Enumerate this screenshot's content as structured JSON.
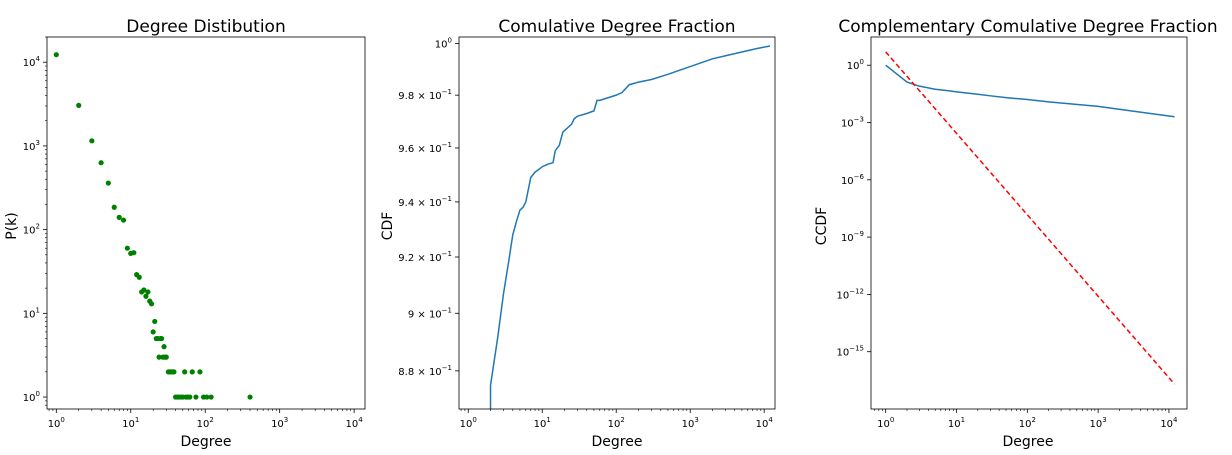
{
  "chart_data": [
    {
      "type": "scatter",
      "title": "Degree Distibution",
      "xlabel": "Degree",
      "ylabel": "P(k)",
      "xscale": "log",
      "yscale": "log",
      "xlim": [
        0.75,
        14000
      ],
      "ylim": [
        0.72,
        20000
      ],
      "grid": false,
      "colors": {
        "points": "#008000"
      },
      "xticks": [
        {
          "base": "10",
          "exp": "0"
        },
        {
          "base": "10",
          "exp": "1"
        },
        {
          "base": "10",
          "exp": "2"
        },
        {
          "base": "10",
          "exp": "3"
        },
        {
          "base": "10",
          "exp": "4"
        }
      ],
      "yticks": [
        {
          "base": "10",
          "exp": "0"
        },
        {
          "base": "10",
          "exp": "1"
        },
        {
          "base": "10",
          "exp": "2"
        },
        {
          "base": "10",
          "exp": "3"
        },
        {
          "base": "10",
          "exp": "4"
        }
      ],
      "points": [
        [
          1,
          12300
        ],
        [
          2,
          3050
        ],
        [
          3,
          1150
        ],
        [
          4,
          630
        ],
        [
          5,
          360
        ],
        [
          6,
          185
        ],
        [
          7,
          140
        ],
        [
          8,
          130
        ],
        [
          9,
          60
        ],
        [
          10,
          52
        ],
        [
          11,
          53
        ],
        [
          12,
          29
        ],
        [
          13,
          27
        ],
        [
          14,
          18
        ],
        [
          15,
          19
        ],
        [
          16,
          16
        ],
        [
          17,
          18
        ],
        [
          18,
          14
        ],
        [
          19,
          13
        ],
        [
          20,
          6
        ],
        [
          21,
          8
        ],
        [
          22,
          5
        ],
        [
          23,
          5
        ],
        [
          24,
          3
        ],
        [
          25,
          5
        ],
        [
          26,
          5
        ],
        [
          27,
          3
        ],
        [
          28,
          4
        ],
        [
          29,
          3
        ],
        [
          30,
          3
        ],
        [
          32,
          2
        ],
        [
          34,
          2
        ],
        [
          36,
          2
        ],
        [
          38,
          2
        ],
        [
          40,
          1
        ],
        [
          42,
          1
        ],
        [
          44,
          1
        ],
        [
          47,
          1
        ],
        [
          50,
          1
        ],
        [
          53,
          2
        ],
        [
          55,
          1
        ],
        [
          58,
          1
        ],
        [
          62,
          1
        ],
        [
          67,
          2
        ],
        [
          75,
          1
        ],
        [
          85,
          2
        ],
        [
          95,
          1
        ],
        [
          105,
          1
        ],
        [
          120,
          1
        ],
        [
          400,
          1
        ]
      ]
    },
    {
      "type": "line",
      "title": "Comulative Degree Fraction",
      "xlabel": "Degree",
      "ylabel": "CDF",
      "xscale": "log",
      "yscale": "log",
      "xlim": [
        0.75,
        14000
      ],
      "ylim": [
        0.867,
        1.0025
      ],
      "grid": false,
      "colors": {
        "line": "#1f77b4"
      },
      "xticks": [
        {
          "base": "10",
          "exp": "0"
        },
        {
          "base": "10",
          "exp": "1"
        },
        {
          "base": "10",
          "exp": "2"
        },
        {
          "base": "10",
          "exp": "3"
        },
        {
          "base": "10",
          "exp": "4"
        }
      ],
      "yticks": [
        {
          "value": 0.88,
          "mant": "8.8 × ",
          "base": "10",
          "exp": "−1"
        },
        {
          "value": 0.9,
          "mant": "9 × ",
          "base": "10",
          "exp": "−1"
        },
        {
          "value": 0.92,
          "mant": "9.2 × ",
          "base": "10",
          "exp": "−1"
        },
        {
          "value": 0.94,
          "mant": "9.4 × ",
          "base": "10",
          "exp": "−1"
        },
        {
          "value": 0.96,
          "mant": "9.6 × ",
          "base": "10",
          "exp": "−1"
        },
        {
          "value": 0.98,
          "mant": "9.8 × ",
          "base": "10",
          "exp": "−1"
        },
        {
          "value": 1.0,
          "mant": "",
          "base": "10",
          "exp": "0"
        }
      ],
      "x": [
        2,
        2,
        2.5,
        3,
        3.5,
        4,
        4.5,
        5,
        5.5,
        6,
        7,
        8,
        9,
        10,
        12,
        14,
        15,
        17,
        19,
        20,
        25,
        27,
        30,
        40,
        50,
        55,
        60,
        100,
        120,
        150,
        200,
        300,
        500,
        1000,
        2000,
        4000,
        8000,
        12000
      ],
      "y": [
        0.865,
        0.875,
        0.8915,
        0.907,
        0.918,
        0.928,
        0.933,
        0.937,
        0.938,
        0.94,
        0.949,
        0.951,
        0.952,
        0.953,
        0.954,
        0.9545,
        0.959,
        0.961,
        0.966,
        0.9665,
        0.969,
        0.971,
        0.972,
        0.973,
        0.974,
        0.978,
        0.978,
        0.98,
        0.981,
        0.984,
        0.985,
        0.986,
        0.988,
        0.991,
        0.994,
        0.996,
        0.998,
        0.999
      ]
    },
    {
      "type": "line",
      "title": "Complementary Comulative Degree Fraction",
      "xlabel": "Degree",
      "ylabel": "CCDF",
      "xscale": "log",
      "yscale": "log",
      "xlim": [
        0.62,
        18000
      ],
      "ylim": [
        1e-18,
        30
      ],
      "grid": false,
      "colors": {
        "line": "#1f77b4",
        "fit": "#ff0000"
      },
      "xticks": [
        {
          "base": "10",
          "exp": "0"
        },
        {
          "base": "10",
          "exp": "1"
        },
        {
          "base": "10",
          "exp": "2"
        },
        {
          "base": "10",
          "exp": "3"
        },
        {
          "base": "10",
          "exp": "4"
        }
      ],
      "yticks": [
        {
          "value": 1,
          "base": "10",
          "exp": "0"
        },
        {
          "value": 0.001,
          "base": "10",
          "exp": "−3"
        },
        {
          "value": 1e-06,
          "base": "10",
          "exp": "−6"
        },
        {
          "value": 1e-09,
          "base": "10",
          "exp": "−9"
        },
        {
          "value": 1e-12,
          "base": "10",
          "exp": "−12"
        },
        {
          "value": 1e-15,
          "base": "10",
          "exp": "−15"
        }
      ],
      "series": [
        {
          "x": [
            1,
            2,
            3,
            5,
            8,
            10,
            20,
            30,
            50,
            100,
            200,
            1000,
            3000,
            12000
          ],
          "y": [
            1.0,
            0.13,
            0.08,
            0.055,
            0.045,
            0.04,
            0.03,
            0.025,
            0.02,
            0.016,
            0.012,
            0.007,
            0.004,
            0.002
          ]
        },
        {
          "x": [
            1,
            12000
          ],
          "y": [
            5,
            2e-17
          ]
        }
      ]
    }
  ]
}
